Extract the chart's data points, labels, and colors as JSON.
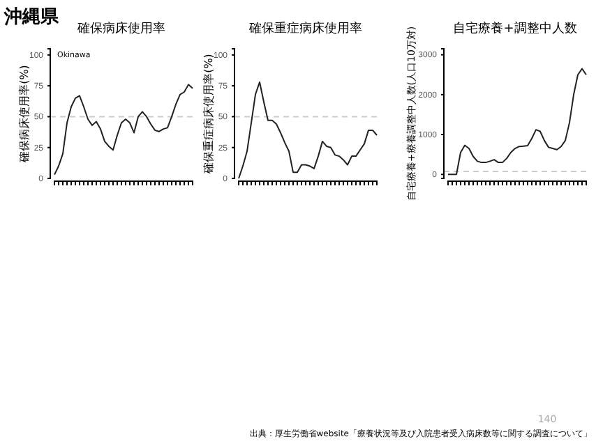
{
  "chart_data": [
    {
      "type": "line",
      "title": "確保病床使用率",
      "ylabel": "確保病床使用率(%)",
      "annotations": [
        "沖縄県",
        "Okinawa"
      ],
      "categories": [
        null,
        null,
        null,
        null,
        null,
        null,
        null,
        null,
        null,
        null,
        null,
        null,
        null,
        null,
        null,
        null,
        null,
        null,
        null,
        null,
        null,
        null,
        null,
        null,
        null,
        null,
        null,
        null,
        null,
        null,
        null,
        null,
        null,
        null
      ],
      "series": [
        {
          "color": "#222222",
          "values": [
            3,
            10,
            20,
            45,
            58,
            65,
            67,
            58,
            48,
            43,
            46,
            40,
            30,
            26,
            23,
            35,
            45,
            48,
            45,
            37,
            50,
            54,
            50,
            44,
            39,
            38,
            40,
            41,
            50,
            60,
            68,
            70,
            76,
            73
          ]
        }
      ],
      "ylim": [
        0,
        105
      ],
      "yticks": [
        0,
        25,
        50,
        75,
        100
      ],
      "ref_lines": [
        {
          "axis": "y",
          "value": 50,
          "color": "#cccccc",
          "line_style": "dashed"
        }
      ],
      "grid": false,
      "marker": "none",
      "line_style": "solid"
    },
    {
      "type": "line",
      "title": "確保重症病床使用率",
      "ylabel": "確保重症病床使用率(%)",
      "categories": [
        null,
        null,
        null,
        null,
        null,
        null,
        null,
        null,
        null,
        null,
        null,
        null,
        null,
        null,
        null,
        null,
        null,
        null,
        null,
        null,
        null,
        null,
        null,
        null,
        null,
        null,
        null,
        null,
        null,
        null,
        null,
        null,
        null,
        null
      ],
      "series": [
        {
          "color": "#222222",
          "values": [
            0,
            10,
            22,
            45,
            68,
            78,
            62,
            47,
            47,
            44,
            37,
            29,
            22,
            5,
            5,
            11,
            11,
            10,
            8,
            18,
            30,
            26,
            25,
            19,
            18,
            15,
            11,
            18,
            18,
            23,
            28,
            39,
            39,
            35
          ]
        }
      ],
      "ylim": [
        0,
        105
      ],
      "yticks": [
        0,
        25,
        50,
        75,
        100
      ],
      "ref_lines": [
        {
          "axis": "y",
          "value": 50,
          "color": "#cccccc",
          "line_style": "dashed"
        }
      ],
      "grid": false,
      "marker": "none",
      "line_style": "solid"
    },
    {
      "type": "line",
      "title": "自宅療養+調整中人数",
      "ylabel": "自宅療養+療養調整中人数(人口10万対)",
      "annotations": [
        "出典：厚生労働省website「療養状況等及び入院患者受入病床数等に関する調査について」",
        "140"
      ],
      "categories": [
        null,
        null,
        null,
        null,
        null,
        null,
        null,
        null,
        null,
        null,
        null,
        null,
        null,
        null,
        null,
        null,
        null,
        null,
        null,
        null,
        null,
        null,
        null,
        null,
        null,
        null,
        null,
        null,
        null,
        null,
        null,
        null,
        null,
        null
      ],
      "series": [
        {
          "color": "#222222",
          "values": [
            0,
            0,
            0,
            550,
            730,
            650,
            450,
            330,
            300,
            300,
            330,
            370,
            300,
            300,
            400,
            550,
            650,
            700,
            710,
            720,
            900,
            1120,
            1080,
            850,
            680,
            650,
            620,
            700,
            850,
            1300,
            2000,
            2500,
            2650,
            2500
          ]
        }
      ],
      "ylim": [
        -100,
        3150
      ],
      "yticks": [
        0,
        1000,
        2000,
        3000
      ],
      "ref_lines": [
        {
          "axis": "y",
          "value": 75,
          "color": "#cccccc",
          "line_style": "dashed"
        }
      ],
      "grid": false,
      "marker": "none",
      "line_style": "solid"
    }
  ]
}
